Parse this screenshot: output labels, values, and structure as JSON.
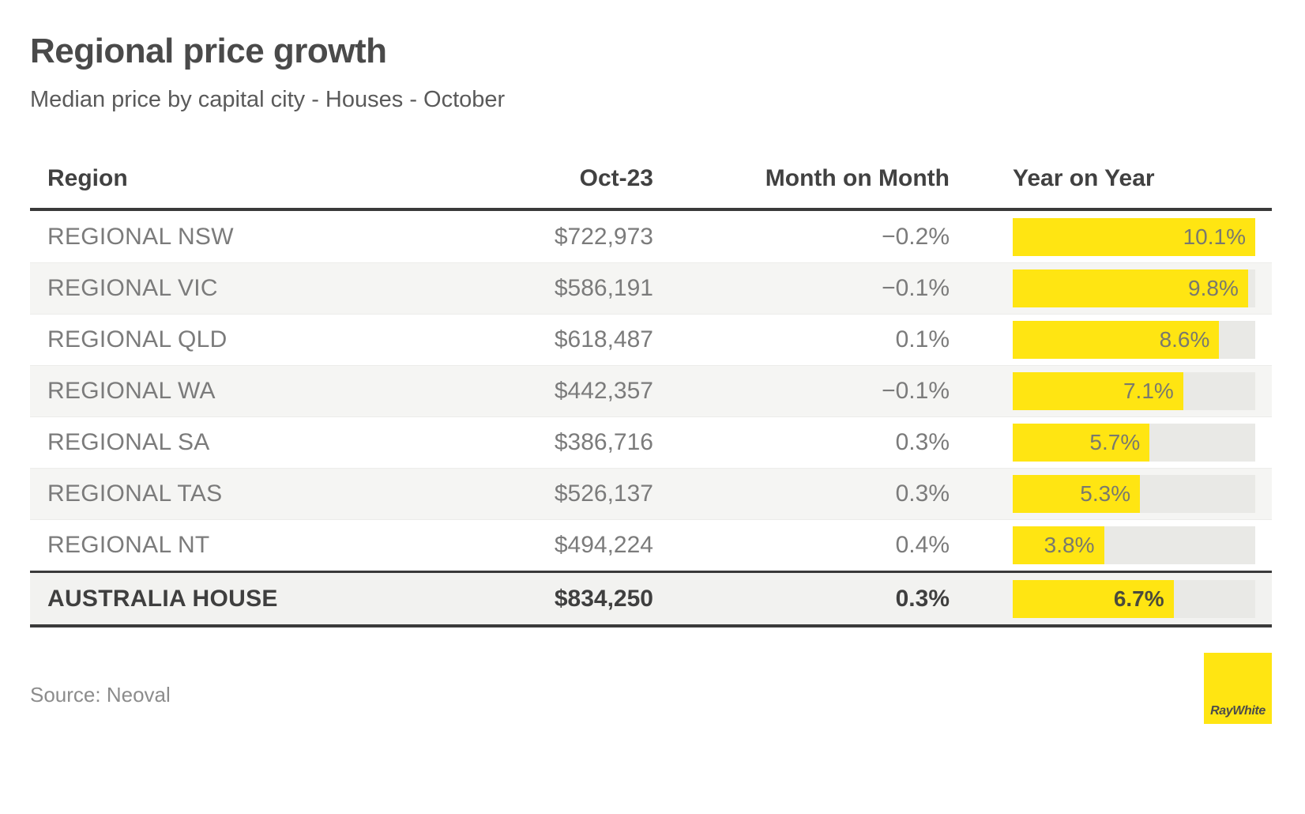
{
  "header": {
    "title": "Regional price growth",
    "subtitle": "Median price by capital city - Houses - October"
  },
  "table": {
    "columns": [
      "Region",
      "Oct-23",
      "Month on Month",
      "Year on Year"
    ],
    "yoy_axis_max": 10.1,
    "rows": [
      {
        "region": "REGIONAL NSW",
        "price": "$722,973",
        "mom": "−0.2%",
        "yoy": "10.1%",
        "yoy_value": 10.1,
        "total": false
      },
      {
        "region": "REGIONAL VIC",
        "price": "$586,191",
        "mom": "−0.1%",
        "yoy": "9.8%",
        "yoy_value": 9.8,
        "total": false
      },
      {
        "region": "REGIONAL QLD",
        "price": "$618,487",
        "mom": "0.1%",
        "yoy": "8.6%",
        "yoy_value": 8.6,
        "total": false
      },
      {
        "region": "REGIONAL WA",
        "price": "$442,357",
        "mom": "−0.1%",
        "yoy": "7.1%",
        "yoy_value": 7.1,
        "total": false
      },
      {
        "region": "REGIONAL SA",
        "price": "$386,716",
        "mom": "0.3%",
        "yoy": "5.7%",
        "yoy_value": 5.7,
        "total": false
      },
      {
        "region": "REGIONAL TAS",
        "price": "$526,137",
        "mom": "0.3%",
        "yoy": "5.3%",
        "yoy_value": 5.3,
        "total": false
      },
      {
        "region": "REGIONAL NT",
        "price": "$494,224",
        "mom": "0.4%",
        "yoy": "3.8%",
        "yoy_value": 3.8,
        "total": false
      },
      {
        "region": "AUSTRALIA HOUSE",
        "price": "$834,250",
        "mom": "0.3%",
        "yoy": "6.7%",
        "yoy_value": 6.7,
        "total": true
      }
    ]
  },
  "footer": {
    "source": "Source: Neoval",
    "logo_text": "RayWhite"
  },
  "colors": {
    "accent_yellow": "#ffe512",
    "bar_track": "#e9e9e6",
    "row_stripe": "#f5f5f3",
    "dark_line": "#3a3a3a"
  },
  "chart_data": {
    "type": "table",
    "title": "Regional price growth",
    "subtitle": "Median price by capital city - Houses - October",
    "columns": [
      "Region",
      "Oct-23",
      "Month on Month",
      "Year on Year"
    ],
    "rows": [
      {
        "region": "REGIONAL NSW",
        "oct_23_price": 722973,
        "month_on_month_pct": -0.2,
        "year_on_year_pct": 10.1
      },
      {
        "region": "REGIONAL VIC",
        "oct_23_price": 586191,
        "month_on_month_pct": -0.1,
        "year_on_year_pct": 9.8
      },
      {
        "region": "REGIONAL QLD",
        "oct_23_price": 618487,
        "month_on_month_pct": 0.1,
        "year_on_year_pct": 8.6
      },
      {
        "region": "REGIONAL WA",
        "oct_23_price": 442357,
        "month_on_month_pct": -0.1,
        "year_on_year_pct": 7.1
      },
      {
        "region": "REGIONAL SA",
        "oct_23_price": 386716,
        "month_on_month_pct": 0.3,
        "year_on_year_pct": 5.7
      },
      {
        "region": "REGIONAL TAS",
        "oct_23_price": 526137,
        "month_on_month_pct": 0.3,
        "year_on_year_pct": 5.3
      },
      {
        "region": "REGIONAL NT",
        "oct_23_price": 494224,
        "month_on_month_pct": 0.4,
        "year_on_year_pct": 3.8
      },
      {
        "region": "AUSTRALIA HOUSE",
        "oct_23_price": 834250,
        "month_on_month_pct": 0.3,
        "year_on_year_pct": 6.7
      }
    ],
    "yoy_bar": {
      "style": "bar",
      "axis_max": 10.1,
      "color": "#ffe512",
      "track_color": "#e9e9e6",
      "labels_inside_bar": true
    },
    "source": "Source: Neoval",
    "brand": "RayWhite"
  }
}
